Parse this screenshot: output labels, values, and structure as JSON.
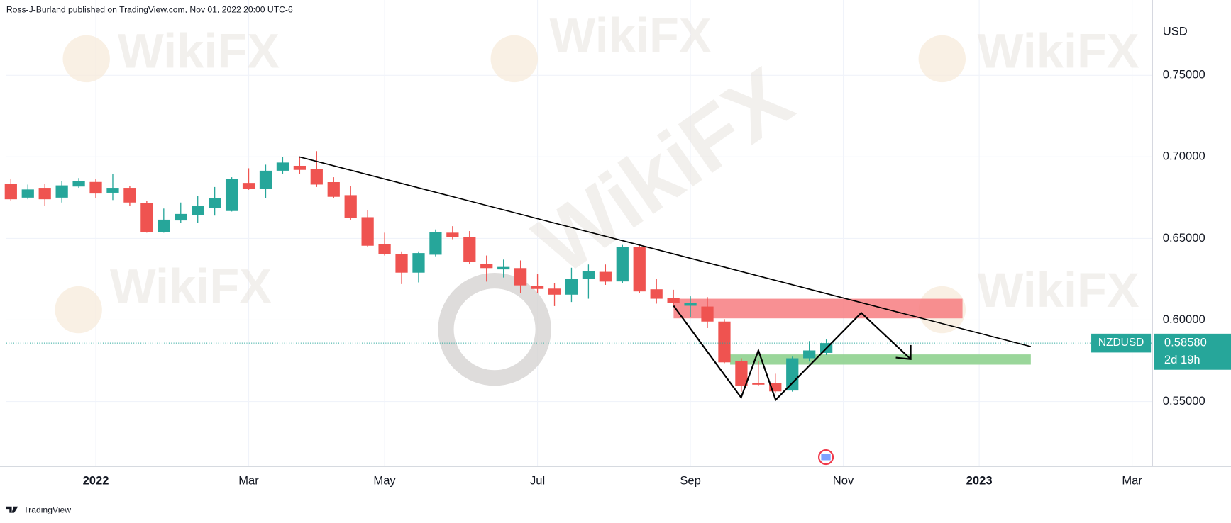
{
  "header": "Ross-J-Burland published on TradingView.com, Nov 01, 2022 20:00 UTC-6",
  "footer": "TradingView",
  "watermark": "WikiFX",
  "chart_data": {
    "type": "candlestick",
    "currency": "USD",
    "symbol": "NZDUSD",
    "countdown": "2d 19h",
    "last": {
      "value": 0.5858,
      "label": "0.58580"
    },
    "up_color": "#26a69a",
    "down_color": "#ef5350",
    "xlim": [
      -0.27,
      67.2
    ],
    "xticks": [
      {
        "value": 5,
        "label": "2022"
      },
      {
        "value": 14,
        "label": "Mar"
      },
      {
        "value": 22,
        "label": "May"
      },
      {
        "value": 31,
        "label": "Jul"
      },
      {
        "value": 40,
        "label": "Sep"
      },
      {
        "value": 49,
        "label": "Nov"
      },
      {
        "value": 57,
        "label": "2023"
      },
      {
        "value": 66,
        "label": "Mar"
      }
    ],
    "ylim": [
      0.5101,
      0.7856
    ],
    "yticks": [
      {
        "value": 0.55,
        "label": "0.55000"
      },
      {
        "value": 0.6,
        "label": "0.60000"
      },
      {
        "value": 0.65,
        "label": "0.65000"
      },
      {
        "value": 0.7,
        "label": "0.70000"
      },
      {
        "value": 0.75,
        "label": "0.75000"
      }
    ],
    "grid": true,
    "x": [
      0,
      1,
      2,
      3,
      4,
      5,
      6,
      7,
      8,
      9,
      10,
      11,
      12,
      13,
      14,
      15,
      16,
      17,
      18,
      19,
      20,
      21,
      22,
      23,
      24,
      25,
      26,
      27,
      28,
      29,
      30,
      31,
      32,
      33,
      34,
      35,
      36,
      37,
      38,
      39,
      40,
      41,
      42,
      43,
      44,
      45,
      46,
      47,
      48
    ],
    "open": [
      0.6835,
      0.675,
      0.681,
      0.675,
      0.6818,
      0.6846,
      0.678,
      0.681,
      0.6715,
      0.6538,
      0.661,
      0.6645,
      0.6688,
      0.6668,
      0.684,
      0.6803,
      0.6915,
      0.6945,
      0.6925,
      0.6845,
      0.6765,
      0.663,
      0.6465,
      0.6405,
      0.629,
      0.64,
      0.6535,
      0.651,
      0.6345,
      0.631,
      0.6318,
      0.6208,
      0.6192,
      0.6155,
      0.625,
      0.6295,
      0.6236,
      0.6447,
      0.6188,
      0.6133,
      0.6087,
      0.6082,
      0.599,
      0.575,
      0.5612,
      0.5615,
      0.5567,
      0.5765,
      0.5798
    ],
    "high": [
      0.6865,
      0.683,
      0.6835,
      0.685,
      0.687,
      0.6865,
      0.6895,
      0.682,
      0.673,
      0.6683,
      0.672,
      0.676,
      0.6815,
      0.6875,
      0.693,
      0.6952,
      0.7,
      0.7,
      0.7035,
      0.6875,
      0.682,
      0.6675,
      0.6535,
      0.642,
      0.642,
      0.6555,
      0.6575,
      0.6545,
      0.6395,
      0.637,
      0.6365,
      0.628,
      0.6225,
      0.632,
      0.634,
      0.634,
      0.646,
      0.646,
      0.625,
      0.6185,
      0.6145,
      0.614,
      0.6005,
      0.5765,
      0.575,
      0.567,
      0.5775,
      0.587,
      0.588
    ],
    "low": [
      0.673,
      0.674,
      0.67,
      0.672,
      0.681,
      0.6745,
      0.6735,
      0.67,
      0.6535,
      0.6535,
      0.6595,
      0.6595,
      0.664,
      0.6665,
      0.6798,
      0.6745,
      0.6895,
      0.6895,
      0.6815,
      0.6745,
      0.6615,
      0.645,
      0.6395,
      0.622,
      0.623,
      0.639,
      0.6495,
      0.6345,
      0.6235,
      0.626,
      0.6165,
      0.6165,
      0.6085,
      0.611,
      0.613,
      0.6215,
      0.6225,
      0.6165,
      0.61,
      0.608,
      0.6015,
      0.595,
      0.5735,
      0.556,
      0.5595,
      0.555,
      0.556,
      0.5745,
      0.5785
    ],
    "close": [
      0.674,
      0.68,
      0.674,
      0.6825,
      0.685,
      0.6775,
      0.681,
      0.672,
      0.6538,
      0.6615,
      0.665,
      0.67,
      0.6745,
      0.6865,
      0.6803,
      0.6915,
      0.6965,
      0.692,
      0.683,
      0.6755,
      0.6625,
      0.6455,
      0.6405,
      0.629,
      0.641,
      0.654,
      0.651,
      0.6355,
      0.6318,
      0.6325,
      0.6212,
      0.619,
      0.6155,
      0.625,
      0.63,
      0.6235,
      0.6447,
      0.6175,
      0.613,
      0.6106,
      0.6105,
      0.599,
      0.574,
      0.5595,
      0.5603,
      0.5562,
      0.5765,
      0.5813,
      0.5858
    ]
  }
}
